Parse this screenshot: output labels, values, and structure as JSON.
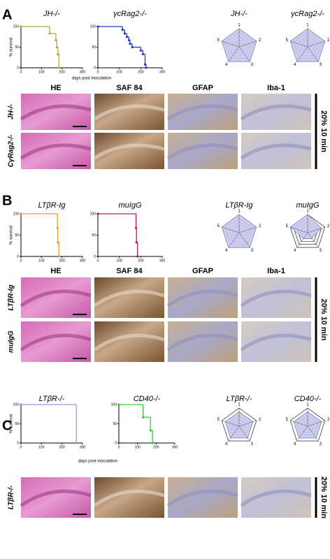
{
  "panels": [
    {
      "label": "A",
      "ylabel": "% survival",
      "xlabel": "days post inoculation",
      "xlim": [
        0,
        300
      ],
      "ylim": [
        0,
        100
      ],
      "xticks": [
        0,
        100,
        200,
        300
      ],
      "yticks": [
        0,
        50,
        100
      ],
      "survival": [
        {
          "title": "JH-/-",
          "color": "#b5a642",
          "x": [
            0,
            140,
            170,
            175,
            180,
            185
          ],
          "values": [
            100,
            83,
            67,
            50,
            33,
            0
          ]
        },
        {
          "title": "γcRag2-/-",
          "color": "#1f3fbf",
          "x": [
            0,
            115,
            125,
            135,
            145,
            150,
            160,
            200,
            210,
            220,
            225
          ],
          "values": [
            100,
            92,
            83,
            75,
            67,
            58,
            50,
            42,
            33,
            8,
            0
          ]
        }
      ],
      "radar_axes": [
        "1",
        "2",
        "3",
        "4",
        "5"
      ],
      "rlim": [
        0,
        5
      ],
      "radars": [
        {
          "title": "JH-/-",
          "values": [
            5,
            5,
            5,
            5,
            5
          ]
        },
        {
          "title": "γcRag2-/-",
          "values": [
            5,
            5,
            5,
            5,
            5
          ]
        }
      ],
      "stains": [
        "HE",
        "SAF 84",
        "GFAP",
        "Iba-1"
      ],
      "rows": [
        "JH-/-",
        "CγRag2-/-"
      ],
      "side_label": "20% 10 min"
    },
    {
      "label": "B",
      "ylabel": "% survival",
      "xlim": [
        0,
        300
      ],
      "ylim": [
        0,
        100
      ],
      "xticks": [
        0,
        100,
        200,
        300
      ],
      "yticks": [
        0,
        50,
        100
      ],
      "survival": [
        {
          "title": "LTβR-Ig",
          "color": "#e8a020",
          "x": [
            0,
            178,
            180,
            185
          ],
          "values": [
            100,
            67,
            33,
            0
          ]
        },
        {
          "title": "muIgG",
          "color": "#c0106a",
          "x": [
            0,
            178,
            180,
            185
          ],
          "values": [
            100,
            67,
            33,
            0
          ]
        }
      ],
      "radar_axes": [
        "1",
        "2",
        "3",
        "4",
        "5"
      ],
      "rlim": [
        0,
        5
      ],
      "radars": [
        {
          "title": "LTβR-Ig",
          "values": [
            5,
            5,
            5,
            5,
            5
          ]
        },
        {
          "title": "muIgG",
          "values": [
            5,
            4,
            2,
            2,
            5
          ]
        }
      ],
      "stains": [
        "HE",
        "SAF 84",
        "GFAP",
        "Iba-1"
      ],
      "rows": [
        "LTβR-Ig",
        "muIgG"
      ],
      "side_label": "20% 10 min"
    },
    {
      "label": "C",
      "ylabel": "% survival",
      "xlabel": "days post inoculation",
      "xlim": [
        0,
        300
      ],
      "ylim": [
        0,
        100
      ],
      "xticks": [
        0,
        100,
        200,
        300
      ],
      "yticks": [
        0,
        50,
        100
      ],
      "survival": [
        {
          "title": "LTβR-/-",
          "color": "#9a9ae0",
          "x": [
            0,
            270
          ],
          "values": [
            100,
            0
          ]
        },
        {
          "title": "CD40-/-",
          "color": "#30d030",
          "x": [
            0,
            130,
            170,
            180
          ],
          "values": [
            100,
            67,
            33,
            0
          ]
        }
      ],
      "radar_axes": [
        "1",
        "2",
        "3",
        "4",
        "5"
      ],
      "rlim": [
        0,
        5
      ],
      "radars": [
        {
          "title": "LTβR-/-",
          "values": [
            4,
            4,
            4,
            4,
            4
          ]
        },
        {
          "title": "CD40-/-",
          "values": [
            4,
            4,
            4,
            4,
            4
          ]
        }
      ],
      "rows": [
        "LTβR-/-"
      ],
      "side_label": "20% 10 min"
    }
  ]
}
